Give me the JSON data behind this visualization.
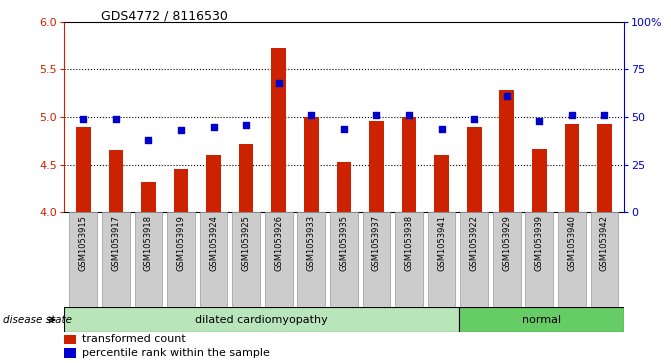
{
  "title": "GDS4772 / 8116530",
  "samples": [
    "GSM1053915",
    "GSM1053917",
    "GSM1053918",
    "GSM1053919",
    "GSM1053924",
    "GSM1053925",
    "GSM1053926",
    "GSM1053933",
    "GSM1053935",
    "GSM1053937",
    "GSM1053938",
    "GSM1053941",
    "GSM1053922",
    "GSM1053929",
    "GSM1053939",
    "GSM1053940",
    "GSM1053942"
  ],
  "transformed_count": [
    4.9,
    4.65,
    4.32,
    4.46,
    4.6,
    4.72,
    5.73,
    5.0,
    4.53,
    4.96,
    5.0,
    4.6,
    4.9,
    5.28,
    4.67,
    4.93,
    4.93
  ],
  "percentile_rank": [
    49,
    49,
    38,
    43,
    45,
    46,
    68,
    51,
    44,
    51,
    51,
    44,
    49,
    61,
    48,
    51,
    51
  ],
  "disease_split": 12,
  "disease_labels": [
    "dilated cardiomyopathy",
    "normal"
  ],
  "ylim_left": [
    4.0,
    6.0
  ],
  "ylim_right": [
    0,
    100
  ],
  "yticks_left": [
    4.0,
    4.5,
    5.0,
    5.5,
    6.0
  ],
  "yticks_right": [
    0,
    25,
    50,
    75,
    100
  ],
  "ytick_labels_right": [
    "0",
    "25",
    "50",
    "75",
    "100%"
  ],
  "bar_color": "#cc2200",
  "dot_color": "#0000cc",
  "bg_dilated": "#b8e6ba",
  "bg_normal": "#66cc66",
  "tick_bg": "#cccccc",
  "grid_yticks": [
    4.5,
    5.0,
    5.5
  ],
  "disease_state_label": "disease state"
}
